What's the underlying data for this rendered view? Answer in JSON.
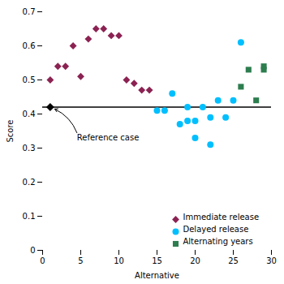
{
  "chart_data": {
    "type": "scatter",
    "xlabel": "Alternative",
    "ylabel": "Score",
    "xlim": [
      0,
      30
    ],
    "ylim": [
      0,
      0.7
    ],
    "xticks": [
      0,
      5,
      10,
      15,
      20,
      25,
      30
    ],
    "yticks": [
      0,
      0.1,
      0.2,
      0.3,
      0.4,
      0.5,
      0.6,
      0.7
    ],
    "grid": false,
    "legend": "lower right",
    "reference_line": {
      "y": 0.42,
      "color": "black"
    },
    "reference_point": {
      "x": 1,
      "y": 0.42,
      "color": "black",
      "marker": "diamond"
    },
    "series": [
      {
        "name": "Immediate release",
        "color": "#8B2252",
        "marker": "diamond",
        "x": [
          1,
          2,
          3,
          4,
          5,
          6,
          7,
          8,
          9,
          10,
          11,
          12,
          13,
          14
        ],
        "values": [
          0.5,
          0.54,
          0.54,
          0.6,
          0.51,
          0.62,
          0.65,
          0.65,
          0.63,
          0.63,
          0.5,
          0.49,
          0.47,
          0.47
        ]
      },
      {
        "name": "Delayed release",
        "color": "#00BFFF",
        "marker": "circle",
        "x": [
          15,
          16,
          17,
          18,
          19,
          19,
          20,
          20,
          21,
          22,
          22,
          23,
          24,
          25,
          26
        ],
        "values": [
          0.41,
          0.41,
          0.46,
          0.37,
          0.42,
          0.38,
          0.33,
          0.38,
          0.42,
          0.39,
          0.31,
          0.44,
          0.39,
          0.44,
          0.61
        ]
      },
      {
        "name": "Alternating years",
        "color": "#2D7D4F",
        "marker": "square",
        "x": [
          26,
          27,
          28,
          29,
          29
        ],
        "values": [
          0.48,
          0.53,
          0.44,
          0.53,
          0.54
        ]
      }
    ],
    "annotations": [
      {
        "text": "Reference case",
        "x": 4.5,
        "y": 0.345,
        "arrow_x": 1.0,
        "arrow_y": 0.42
      }
    ]
  }
}
